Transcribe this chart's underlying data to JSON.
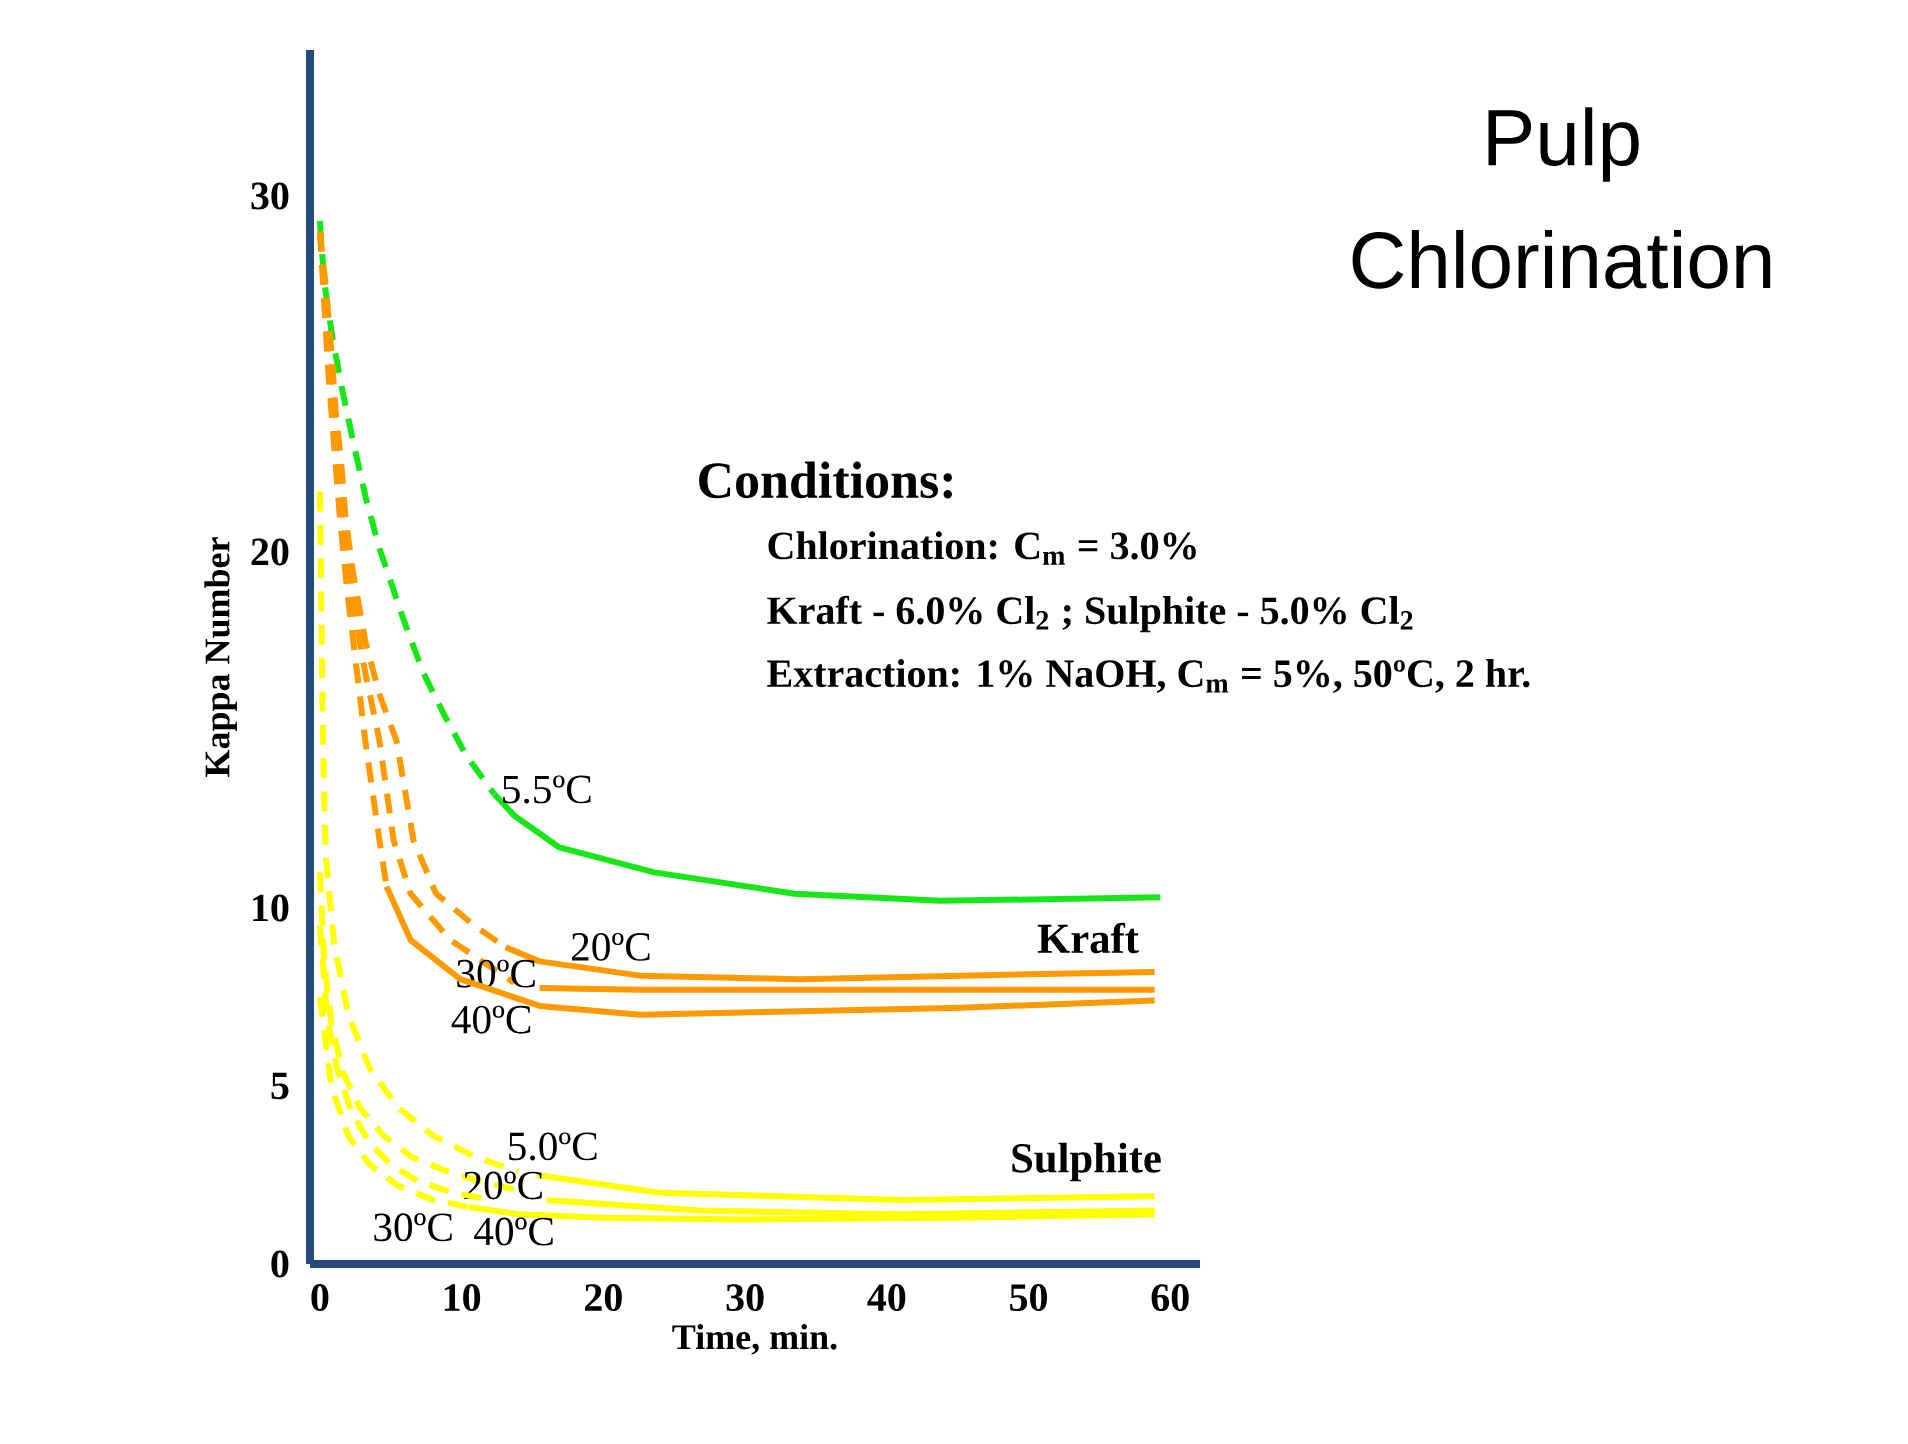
{
  "chart_data": {
    "type": "line",
    "title": "Pulp Chlorination",
    "xlabel": "Time, min.",
    "ylabel": "Kappa Number",
    "xlim": [
      -0.7,
      62.1
    ],
    "ylim": [
      0,
      34.1
    ],
    "xticks": [
      0,
      10,
      20,
      30,
      40,
      50,
      60
    ],
    "yticks": [
      0,
      5,
      10,
      20,
      30
    ],
    "series": [
      {
        "color": "#19e619",
        "line_style": "dashed",
        "x": [
          0,
          0.3,
          0.85,
          1.55,
          2.4,
          3.25,
          4.2,
          5.9,
          7.3,
          8.8,
          10.3,
          12.3
        ],
        "values": [
          29.3,
          27.6,
          26.1,
          24.6,
          23.0,
          21.5,
          20.1,
          18.1,
          16.6,
          15.4,
          14.3,
          13.2
        ]
      },
      {
        "name": "5.5ºC",
        "color": "#19e619",
        "line_style": "solid",
        "x": [
          12.3,
          13.7,
          16.9,
          23.6,
          33.5,
          43.8,
          59.3
        ],
        "values": [
          13.2,
          12.6,
          11.7,
          11.0,
          10.4,
          10.2,
          10.3
        ]
      },
      {
        "color": "#ff9900",
        "line_style": "dashed",
        "x": [
          0,
          0.4,
          0.8,
          1.1,
          1.5,
          1.8,
          2.3,
          3.2,
          4.2,
          5.4,
          6.6,
          8.2,
          10.9,
          13.1
        ],
        "values": [
          29.0,
          27.5,
          25.7,
          24.0,
          22.5,
          21.0,
          19.5,
          17.5,
          16.0,
          14.7,
          11.9,
          10.4,
          9.5,
          8.9
        ]
      },
      {
        "name": "20ºC",
        "color": "#ff9900",
        "line_style": "solid",
        "x": [
          13.1,
          15.5,
          22.6,
          33.9,
          45.2,
          58.9
        ],
        "values": [
          8.9,
          8.5,
          8.1,
          8.0,
          8.1,
          8.2
        ]
      },
      {
        "color": "#ff9900",
        "line_style": "dashed",
        "x": [
          0,
          0.4,
          0.8,
          1.2,
          1.6,
          2.2,
          3.0,
          4.2,
          5.2,
          6.4,
          9.2,
          13.7
        ],
        "values": [
          29.0,
          27.0,
          25.0,
          23.0,
          21.0,
          19.0,
          17.0,
          14.7,
          11.9,
          10.4,
          9.1,
          7.9
        ]
      },
      {
        "name": "30ºC",
        "color": "#ff9900",
        "line_style": "solid",
        "x": [
          15.5,
          22.6,
          33.9,
          45.2,
          58.9
        ],
        "values": [
          7.75,
          7.7,
          7.7,
          7.7,
          7.7
        ]
      },
      {
        "color": "#ff9900",
        "line_style": "dashed",
        "x": [
          0,
          0.3,
          0.6,
          1.0,
          1.4,
          1.9,
          2.5,
          3.2,
          4.2,
          4.7
        ],
        "values": [
          29.0,
          27.0,
          25.0,
          23.0,
          21.0,
          19.0,
          17.0,
          14.7,
          11.9,
          10.6
        ]
      },
      {
        "name": "40ºC",
        "color": "#ff9900",
        "line_style": "solid",
        "x": [
          4.7,
          6.4,
          9.9,
          15.5,
          22.6,
          33.9,
          45.2,
          58.9
        ],
        "values": [
          10.6,
          9.1,
          8.0,
          7.25,
          7.0,
          7.1,
          7.2,
          7.4
        ]
      },
      {
        "color": "#ffff00",
        "line_style": "dashed",
        "x": [
          0,
          0.1,
          0.2,
          0.4,
          1.0,
          2.0,
          3.5,
          5.5,
          8.0,
          11.0,
          14.0
        ],
        "values": [
          21.7,
          18.5,
          15.0,
          11.5,
          9.0,
          7.0,
          5.5,
          4.4,
          3.6,
          3.0,
          2.6
        ]
      },
      {
        "name": "5.0ºC",
        "color": "#ffff00",
        "line_style": "solid",
        "x": [
          15.3,
          24,
          41,
          58.9
        ],
        "values": [
          2.5,
          2.0,
          1.8,
          1.9
        ]
      },
      {
        "color": "#ffff00",
        "line_style": "dashed",
        "x": [
          0,
          0.3,
          0.8,
          1.6,
          2.8,
          4.5,
          6.5,
          9.0,
          11.5,
          13.7
        ],
        "values": [
          11.0,
          8.5,
          6.8,
          5.4,
          4.4,
          3.6,
          3.0,
          2.6,
          2.3,
          2.1
        ]
      },
      {
        "name": "20ºC",
        "color": "#ffff00",
        "line_style": "solid",
        "x": [
          16,
          26.8,
          41,
          58.9
        ],
        "values": [
          1.8,
          1.5,
          1.4,
          1.5
        ]
      },
      {
        "name": "30ºC",
        "color": "#ffff00",
        "line_style": "dashed",
        "x": [
          0,
          0.5,
          1.2,
          2.2,
          3.5,
          5.0,
          7.0,
          9.5,
          12.0
        ],
        "values": [
          9.5,
          7.0,
          5.5,
          4.3,
          3.4,
          2.8,
          2.3,
          2.0,
          1.8
        ]
      },
      {
        "color": "#ffff00",
        "line_style": "dashed",
        "x": [
          0,
          0.8,
          2,
          3.5,
          5.5,
          8,
          10.5
        ],
        "values": [
          7.5,
          5.0,
          3.6,
          2.8,
          2.2,
          1.8,
          1.6
        ]
      },
      {
        "name": "40ºC",
        "color": "#ffff00",
        "line_style": "solid",
        "x": [
          10.5,
          14,
          20,
          30,
          45,
          58.9
        ],
        "values": [
          1.6,
          1.4,
          1.3,
          1.25,
          1.3,
          1.4
        ]
      }
    ],
    "annotations": [
      "Conditions:",
      "Chlorination: C$_{m}$ = 3.0%",
      "Kraft - 6.0% Cl$_{2}$ ; Sulphite - 5.0% Cl$_{2}$",
      "Extraction:  1% NaOH, C$_{m}$ = 5%, 50ºC, 2 hr.",
      "Kraft",
      "Sulphite"
    ]
  }
}
